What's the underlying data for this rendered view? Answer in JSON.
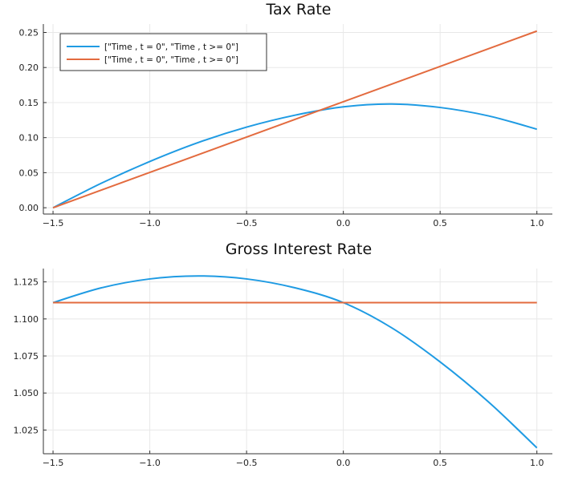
{
  "colors": {
    "series1": "#1f9be3",
    "series2": "#e36b3f",
    "grid": "#e8e8e8",
    "axis": "#333333"
  },
  "chart_data": [
    {
      "type": "line",
      "title": "Tax Rate",
      "xlabel": "",
      "ylabel": "",
      "xlim": [
        -1.55,
        1.08
      ],
      "ylim": [
        -0.009,
        0.262
      ],
      "xticks": [
        -1.5,
        -1.0,
        -0.5,
        0.0,
        0.5,
        1.0
      ],
      "xtick_labels": [
        "−1.5",
        "−1.0",
        "−0.5",
        "0.0",
        "0.5",
        "1.0"
      ],
      "yticks": [
        0.0,
        0.05,
        0.1,
        0.15,
        0.2,
        0.25
      ],
      "ytick_labels": [
        "0.00",
        "0.05",
        "0.10",
        "0.15",
        "0.20",
        "0.25"
      ],
      "grid": true,
      "legend_position": "top-left",
      "series": [
        {
          "name": "[\"Time , t = 0\", \"Time , t >= 0\"]",
          "color": "#1f9be3",
          "x": [
            -1.5,
            -1.25,
            -1.0,
            -0.75,
            -0.5,
            -0.25,
            0.0,
            0.25,
            0.5,
            0.75,
            1.0
          ],
          "y": [
            0.0,
            0.035,
            0.066,
            0.093,
            0.115,
            0.132,
            0.144,
            0.148,
            0.143,
            0.131,
            0.112
          ]
        },
        {
          "name": "[\"Time , t = 0\", \"Time , t >= 0\"]",
          "color": "#e36b3f",
          "x": [
            -1.5,
            1.0
          ],
          "y": [
            0.0,
            0.252
          ]
        }
      ]
    },
    {
      "type": "line",
      "title": "Gross Interest Rate",
      "xlabel": "",
      "ylabel": "",
      "xlim": [
        -1.55,
        1.08
      ],
      "ylim": [
        1.009,
        1.134
      ],
      "xticks": [
        -1.5,
        -1.0,
        -0.5,
        0.0,
        0.5,
        1.0
      ],
      "xtick_labels": [
        "−1.5",
        "−1.0",
        "−0.5",
        "0.0",
        "0.5",
        "1.0"
      ],
      "yticks": [
        1.025,
        1.05,
        1.075,
        1.1,
        1.125
      ],
      "ytick_labels": [
        "1.025",
        "1.050",
        "1.075",
        "1.100",
        "1.125"
      ],
      "grid": true,
      "series": [
        {
          "color": "#1f9be3",
          "x": [
            -1.5,
            -1.25,
            -1.0,
            -0.75,
            -0.5,
            -0.25,
            0.0,
            0.25,
            0.5,
            0.75,
            1.0
          ],
          "y": [
            1.111,
            1.121,
            1.127,
            1.129,
            1.127,
            1.121,
            1.111,
            1.094,
            1.071,
            1.044,
            1.013
          ]
        },
        {
          "color": "#e36b3f",
          "x": [
            -1.5,
            1.0
          ],
          "y": [
            1.111,
            1.111
          ]
        }
      ]
    }
  ]
}
